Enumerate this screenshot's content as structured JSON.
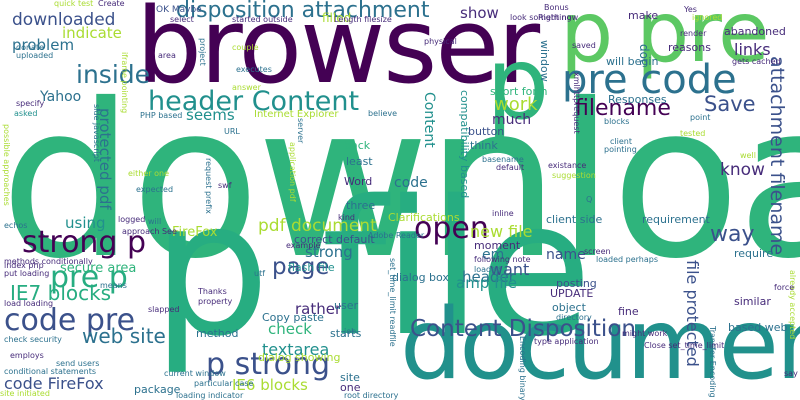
{
  "palette": {
    "dark_purple": "#440154",
    "indigo": "#472c7a",
    "slate_blue": "#3b518b",
    "steel": "#2c718e",
    "teal": "#21908d",
    "sea_green": "#27ad81",
    "green": "#5cc863",
    "lime": "#aadc32",
    "yellow": "#fde725"
  },
  "words": [
    {
      "text": "download"
    },
    {
      "text": "p file"
    },
    {
      "text": "browser"
    },
    {
      "text": "document"
    },
    {
      "text": "p pre"
    },
    {
      "text": "p"
    },
    {
      "text": "pre code"
    },
    {
      "text": "disposition attachment"
    },
    {
      "text": "header Content"
    },
    {
      "text": "strong p"
    },
    {
      "text": "pre p"
    },
    {
      "text": "code pre"
    },
    {
      "text": "p strong"
    },
    {
      "text": "open"
    },
    {
      "text": "Content Disposition"
    },
    {
      "text": "inside"
    },
    {
      "text": "filename"
    },
    {
      "text": "attachment filename"
    },
    {
      "text": "work"
    },
    {
      "text": "Save"
    },
    {
      "text": "page"
    },
    {
      "text": "web site"
    },
    {
      "text": "IE7 blocks"
    },
    {
      "text": "downloaded"
    },
    {
      "text": "problem"
    },
    {
      "text": "indicate"
    },
    {
      "text": "show"
    },
    {
      "text": "know"
    },
    {
      "text": "way"
    },
    {
      "text": "links"
    },
    {
      "text": "pdf document"
    },
    {
      "text": "new file"
    },
    {
      "text": "code FireFox"
    },
    {
      "text": "textarea"
    },
    {
      "text": "IE6 blocks"
    },
    {
      "text": "protected pdf"
    },
    {
      "text": "file protected"
    },
    {
      "text": "seems"
    },
    {
      "text": "much"
    },
    {
      "text": "Yahoo"
    },
    {
      "text": "using"
    },
    {
      "text": "strong"
    },
    {
      "text": "check"
    },
    {
      "text": "want"
    },
    {
      "text": "header"
    },
    {
      "text": "amp file"
    },
    {
      "text": "rather"
    },
    {
      "text": "secure area"
    },
    {
      "text": "name"
    },
    {
      "text": "em"
    },
    {
      "text": "FireFox"
    },
    {
      "text": "code"
    },
    {
      "text": "filled"
    },
    {
      "text": "Content"
    },
    {
      "text": "Word"
    },
    {
      "text": "three"
    },
    {
      "text": "back"
    },
    {
      "text": "least"
    },
    {
      "text": "think"
    },
    {
      "text": "button"
    },
    {
      "text": "short form"
    },
    {
      "text": "window"
    },
    {
      "text": "will begin"
    },
    {
      "text": "Responses"
    },
    {
      "text": "compatibility based"
    },
    {
      "text": "doc"
    },
    {
      "text": "make"
    },
    {
      "text": "abandoned"
    },
    {
      "text": "reasons"
    },
    {
      "text": "requirement"
    },
    {
      "text": "client side"
    },
    {
      "text": "Clarifications"
    },
    {
      "text": "correct default"
    },
    {
      "text": "flash file"
    },
    {
      "text": "based web"
    },
    {
      "text": "similar"
    },
    {
      "text": "require"
    },
    {
      "text": "fine"
    },
    {
      "text": "posting"
    },
    {
      "text": "object"
    },
    {
      "text": "UPDATE"
    },
    {
      "text": "moment"
    },
    {
      "text": "dialog box"
    },
    {
      "text": "Copy paste"
    },
    {
      "text": "dialog showing"
    },
    {
      "text": "starts"
    },
    {
      "text": "user"
    },
    {
      "text": "package"
    },
    {
      "text": "method"
    },
    {
      "text": "site"
    },
    {
      "text": "one"
    },
    {
      "text": "Internet Explorer"
    },
    {
      "text": "PHP based"
    },
    {
      "text": "OK Maybe"
    },
    {
      "text": "Bonus"
    },
    {
      "text": "Right now"
    },
    {
      "text": "quick test"
    },
    {
      "text": "Create"
    },
    {
      "text": "asked"
    },
    {
      "text": "possible approaches"
    },
    {
      "text": "side javascript"
    },
    {
      "text": "iframe pointing"
    },
    {
      "text": "example"
    },
    {
      "text": "employs"
    },
    {
      "text": "check security"
    },
    {
      "text": "conditional statements"
    },
    {
      "text": "methods conditionally"
    },
    {
      "text": "site initiated"
    },
    {
      "text": "echos"
    },
    {
      "text": "utf"
    },
    {
      "text": "slapped"
    },
    {
      "text": "send users"
    },
    {
      "text": "current window"
    },
    {
      "text": "say"
    },
    {
      "text": "Q"
    },
    {
      "text": "blocks"
    },
    {
      "text": "point"
    },
    {
      "text": "pointing"
    },
    {
      "text": "couple"
    },
    {
      "text": "believe"
    },
    {
      "text": "answer"
    },
    {
      "text": "executes"
    },
    {
      "text": "particular case"
    },
    {
      "text": "Adobe Reader"
    },
    {
      "text": "already accepted"
    },
    {
      "text": "force"
    },
    {
      "text": "job"
    },
    {
      "text": "Thanks"
    },
    {
      "text": "property"
    },
    {
      "text": "uploaded"
    },
    {
      "text": "donate"
    },
    {
      "text": "specify"
    },
    {
      "text": "index php"
    },
    {
      "text": "put loading"
    },
    {
      "text": "Length filesize"
    },
    {
      "text": "physical"
    },
    {
      "text": "look something"
    },
    {
      "text": "saved"
    },
    {
      "text": "render"
    },
    {
      "text": "gets cached"
    },
    {
      "text": "existance"
    },
    {
      "text": "default"
    },
    {
      "text": "basename"
    },
    {
      "text": "suggestion"
    },
    {
      "text": "loaded"
    },
    {
      "text": "following note"
    },
    {
      "text": "inline"
    },
    {
      "text": "kind"
    },
    {
      "text": "server"
    },
    {
      "text": "application pdf"
    },
    {
      "text": "request prefix"
    },
    {
      "text": "swf"
    },
    {
      "text": "expected"
    },
    {
      "text": "either one"
    },
    {
      "text": "approach See"
    },
    {
      "text": "will"
    },
    {
      "text": "logged"
    },
    {
      "text": "loading indicator"
    },
    {
      "text": "root directory"
    },
    {
      "text": "type application"
    },
    {
      "text": "might work"
    },
    {
      "text": "set_time_limit readfile"
    },
    {
      "text": "Encoding binary"
    },
    {
      "text": "Transfer Encoding"
    },
    {
      "text": "Close set_time_limit"
    },
    {
      "text": "load loading"
    },
    {
      "text": "screen"
    },
    {
      "text": "loaded perhaps"
    },
    {
      "text": "client"
    },
    {
      "text": "well"
    },
    {
      "text": "tested"
    },
    {
      "text": "xmlhttprequest"
    },
    {
      "text": "area"
    },
    {
      "text": "project"
    },
    {
      "text": "URL"
    },
    {
      "text": "select"
    },
    {
      "text": "started outside"
    },
    {
      "text": "means"
    },
    {
      "text": "directory"
    },
    {
      "text": "ignored"
    },
    {
      "text": "Yes"
    }
  ]
}
